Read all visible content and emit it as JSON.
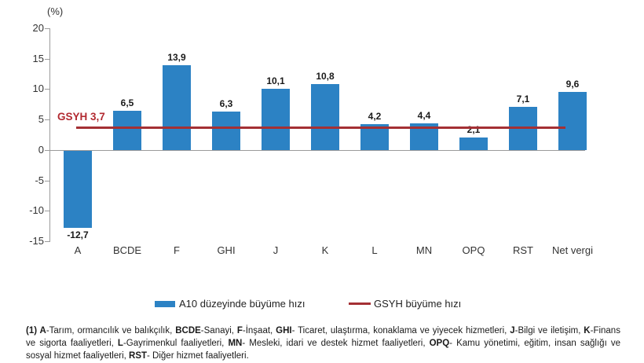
{
  "chart_data": {
    "type": "bar",
    "title": "(%)",
    "categories": [
      "A",
      "BCDE",
      "F",
      "GHI",
      "J",
      "K",
      "L",
      "MN",
      "OPQ",
      "RST",
      "Net vergi"
    ],
    "values": [
      -12.7,
      6.5,
      13.9,
      6.3,
      10.1,
      10.8,
      4.2,
      4.4,
      2.1,
      7.1,
      9.6
    ],
    "value_labels": [
      "-12,7",
      "6,5",
      "13,9",
      "6,3",
      "10,1",
      "10,8",
      "4,2",
      "4,4",
      "2,1",
      "7,1",
      "9,6"
    ],
    "ylim": [
      -15,
      20
    ],
    "yticks": [
      20,
      15,
      10,
      5,
      0,
      -5,
      -10,
      -15
    ],
    "grid": false,
    "bar_color": "#2C82C4",
    "reference_line": {
      "label": "GSYH 3,7",
      "value": 3.7,
      "color": "#A43034",
      "label_color": "#B22A31"
    },
    "legend_position": "bottom",
    "legend": [
      {
        "label": "A10 düzeyinde büyüme hızı",
        "type": "bar",
        "color": "#2C82C4"
      },
      {
        "label": "GSYH büyüme hızı",
        "type": "line",
        "color": "#A43034"
      }
    ]
  },
  "footnote": {
    "segments": [
      {
        "text": "(1) A",
        "bold": true
      },
      {
        "text": "-Tarım, ormancılık ve balıkçılık, ",
        "bold": false
      },
      {
        "text": "BCDE",
        "bold": true
      },
      {
        "text": "-Sanayi, ",
        "bold": false
      },
      {
        "text": "F",
        "bold": true
      },
      {
        "text": "-İnşaat, ",
        "bold": false
      },
      {
        "text": "GHI",
        "bold": true
      },
      {
        "text": "- Ticaret, ulaştırma, konaklama ve yiyecek hizmetleri, ",
        "bold": false
      },
      {
        "text": "J",
        "bold": true
      },
      {
        "text": "-Bilgi ve iletişim, ",
        "bold": false
      },
      {
        "text": "K",
        "bold": true
      },
      {
        "text": "-Finans ve sigorta faaliyetleri, ",
        "bold": false
      },
      {
        "text": "L",
        "bold": true
      },
      {
        "text": "-Gayrimenkul faaliyetleri, ",
        "bold": false
      },
      {
        "text": "MN",
        "bold": true
      },
      {
        "text": "- Mesleki, idari ve destek hizmet faaliyetleri, ",
        "bold": false
      },
      {
        "text": "OPQ",
        "bold": true
      },
      {
        "text": "- Kamu yönetimi, eğitim, insan sağlığı ve sosyal hizmet faaliyetleri, ",
        "bold": false
      },
      {
        "text": "RST",
        "bold": true
      },
      {
        "text": "- Diğer hizmet faaliyetleri.",
        "bold": false
      }
    ]
  }
}
